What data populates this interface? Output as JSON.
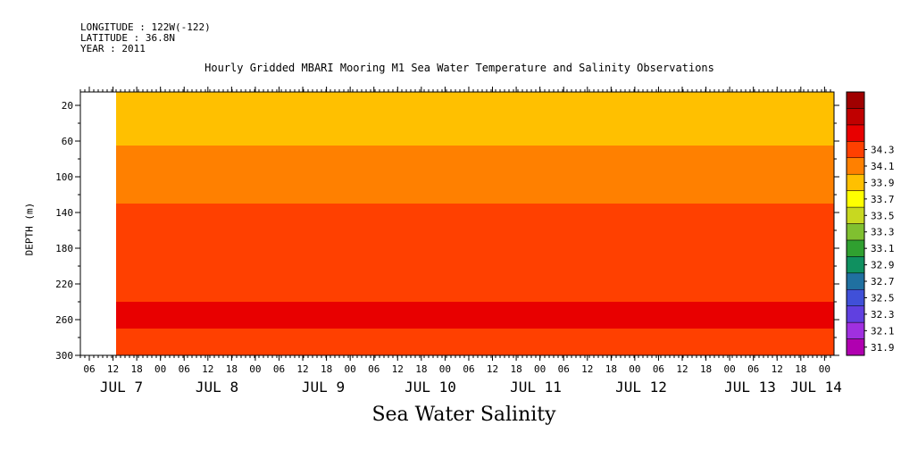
{
  "header": {
    "longitude": "LONGITUDE : 122W(-122)",
    "latitude": "LATITUDE : 36.8N",
    "year": "YEAR : 2011"
  },
  "chart_data": {
    "type": "heatmap",
    "title": "Hourly Gridded MBARI Mooring M1 Sea Water Temperature and Salinity Observations",
    "xlabel": "Sea Water Salinity",
    "ylabel": "DEPTH (m)",
    "ylim": [
      300,
      5
    ],
    "y_ticks": [
      20,
      60,
      100,
      140,
      180,
      220,
      260,
      300
    ],
    "x_hour_ticks": [
      "06",
      "12",
      "18",
      "00",
      "06",
      "12",
      "18",
      "00",
      "06",
      "12",
      "18",
      "00",
      "06",
      "12",
      "18",
      "00",
      "06",
      "12",
      "18",
      "00",
      "06",
      "12",
      "18",
      "00",
      "06",
      "12",
      "18",
      "00",
      "06",
      "12",
      "18",
      "00"
    ],
    "x_day_labels": [
      "JUL  7",
      "JUL  8",
      "JUL  9",
      "JUL 10",
      "JUL 11",
      "JUL 12",
      "JUL 13",
      "JUL 14"
    ],
    "colorbar": {
      "levels": [
        31.9,
        32.1,
        32.3,
        32.5,
        32.7,
        32.9,
        33.1,
        33.3,
        33.5,
        33.7,
        33.9,
        34.1,
        34.3
      ],
      "colors": [
        "#b000b0",
        "#a030e0",
        "#6040e0",
        "#4050d8",
        "#2070a0",
        "#109060",
        "#30a030",
        "#80c030",
        "#c8d820",
        "#ffff00",
        "#ffc000",
        "#ff8000",
        "#ff4000",
        "#e80000",
        "#c00000",
        "#a00000"
      ]
    },
    "layers": [
      {
        "depth_top": 5,
        "depth_bottom": 30,
        "salinity": 33.7
      },
      {
        "depth_top": 30,
        "depth_bottom": 65,
        "salinity": 33.8
      },
      {
        "depth_top": 65,
        "depth_bottom": 130,
        "salinity": 34.0
      },
      {
        "depth_top": 130,
        "depth_bottom": 210,
        "salinity": 34.1
      },
      {
        "depth_top": 210,
        "depth_bottom": 240,
        "salinity": 34.2
      },
      {
        "depth_top": 240,
        "depth_bottom": 270,
        "salinity": 34.3
      },
      {
        "depth_top": 270,
        "depth_bottom": 300,
        "salinity": 34.2
      }
    ]
  }
}
